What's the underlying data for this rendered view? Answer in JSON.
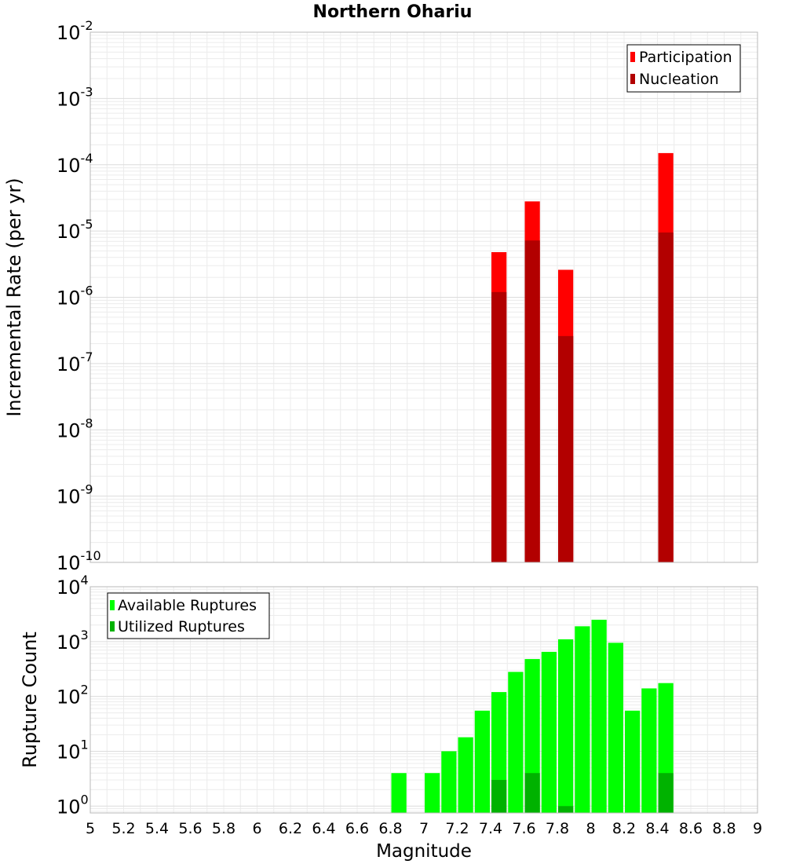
{
  "chart_data": [
    {
      "type": "bar",
      "title": "Northern Ohariu",
      "xlabel": "",
      "ylabel": "Incremental Rate (per yr)",
      "xlim": [
        5,
        9
      ],
      "ylim": [
        1e-10,
        0.01
      ],
      "yscale": "log",
      "grid": true,
      "legend_position": "top-right",
      "ytick_exponents": [
        -10,
        -9,
        -8,
        -7,
        -6,
        -5,
        -4,
        -3,
        -2
      ],
      "series": [
        {
          "name": "Participation",
          "color": "#ff0000",
          "x": [
            7.45,
            7.65,
            7.85,
            8.45
          ],
          "values": [
            4.8e-06,
            2.8e-05,
            2.6e-06,
            0.00015
          ]
        },
        {
          "name": "Nucleation",
          "color": "#b20000",
          "x": [
            7.45,
            7.65,
            7.85,
            8.45
          ],
          "values": [
            1.2e-06,
            7.2e-06,
            2.6e-07,
            9.5e-06
          ]
        }
      ]
    },
    {
      "type": "bar",
      "title": "",
      "xlabel": "Magnitude",
      "ylabel": "Rupture Count",
      "xlim": [
        5,
        9
      ],
      "ylim": [
        0.75,
        10000
      ],
      "yscale": "log",
      "grid": true,
      "legend_position": "top-left",
      "xtick_labels": [
        "5",
        "5.2",
        "5.4",
        "5.6",
        "5.8",
        "6",
        "6.2",
        "6.4",
        "6.6",
        "6.8",
        "7",
        "7.2",
        "7.4",
        "7.6",
        "7.8",
        "8",
        "8.2",
        "8.4",
        "8.6",
        "8.8",
        "9"
      ],
      "ytick_exponents": [
        0,
        1,
        2,
        3,
        4
      ],
      "series": [
        {
          "name": "Available Ruptures",
          "color": "#00ff00",
          "x": [
            6.85,
            7.05,
            7.15,
            7.25,
            7.35,
            7.45,
            7.55,
            7.65,
            7.75,
            7.85,
            7.95,
            8.05,
            8.15,
            8.25,
            8.35,
            8.45
          ],
          "values": [
            4,
            4,
            10,
            18,
            55,
            120,
            280,
            480,
            650,
            1100,
            1900,
            2500,
            950,
            55,
            140,
            175
          ]
        },
        {
          "name": "Utilized Ruptures",
          "color": "#00b200",
          "x": [
            7.45,
            7.65,
            7.85,
            8.45
          ],
          "values": [
            3,
            4,
            1,
            4
          ]
        }
      ]
    }
  ]
}
